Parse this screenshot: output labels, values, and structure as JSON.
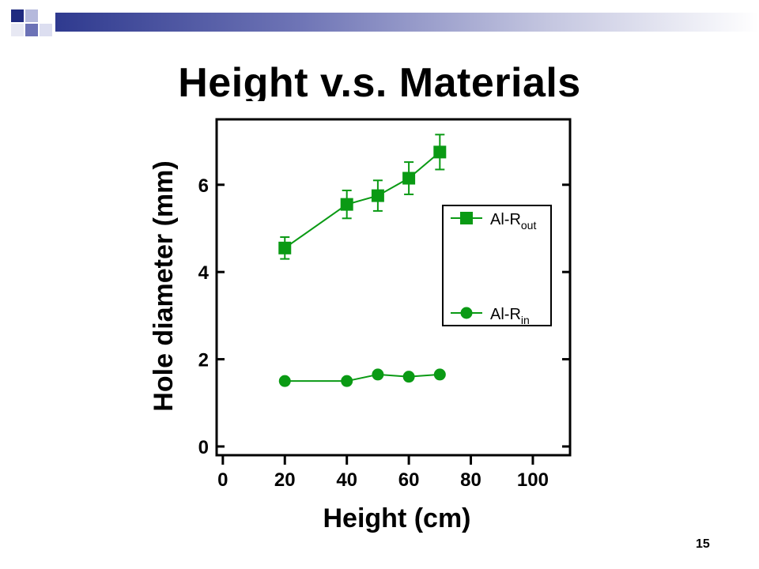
{
  "slide": {
    "title": "Height v.s. Materials",
    "page_number": "15"
  },
  "colors": {
    "series": "#0a9a14",
    "axis": "#000000",
    "header_dark": "#1f2a80"
  },
  "chart_data": {
    "type": "line",
    "xlabel": "Height (cm)",
    "ylabel": "Hole diameter (mm)",
    "xlim": [
      -2,
      112
    ],
    "ylim": [
      -0.2,
      7.5
    ],
    "x_ticks": [
      0,
      20,
      40,
      60,
      80,
      100
    ],
    "x_tick_labels": [
      "0",
      "20",
      "40",
      "60",
      "80",
      "100"
    ],
    "y_ticks": [
      0,
      2,
      4,
      6
    ],
    "y_tick_labels": [
      "0",
      "2",
      "4",
      "6"
    ],
    "grid": false,
    "legend_position": "right",
    "series": [
      {
        "name": "Al-R",
        "name_sub": "out",
        "marker": "square",
        "x": [
          20,
          40,
          50,
          60,
          70
        ],
        "y": [
          4.55,
          5.55,
          5.75,
          6.15,
          6.75
        ],
        "err": [
          0.25,
          0.32,
          0.35,
          0.37,
          0.4
        ]
      },
      {
        "name": "Al-R",
        "name_sub": "in",
        "marker": "circle",
        "x": [
          20,
          40,
          50,
          60,
          70
        ],
        "y": [
          1.5,
          1.5,
          1.65,
          1.6,
          1.65
        ]
      }
    ]
  }
}
